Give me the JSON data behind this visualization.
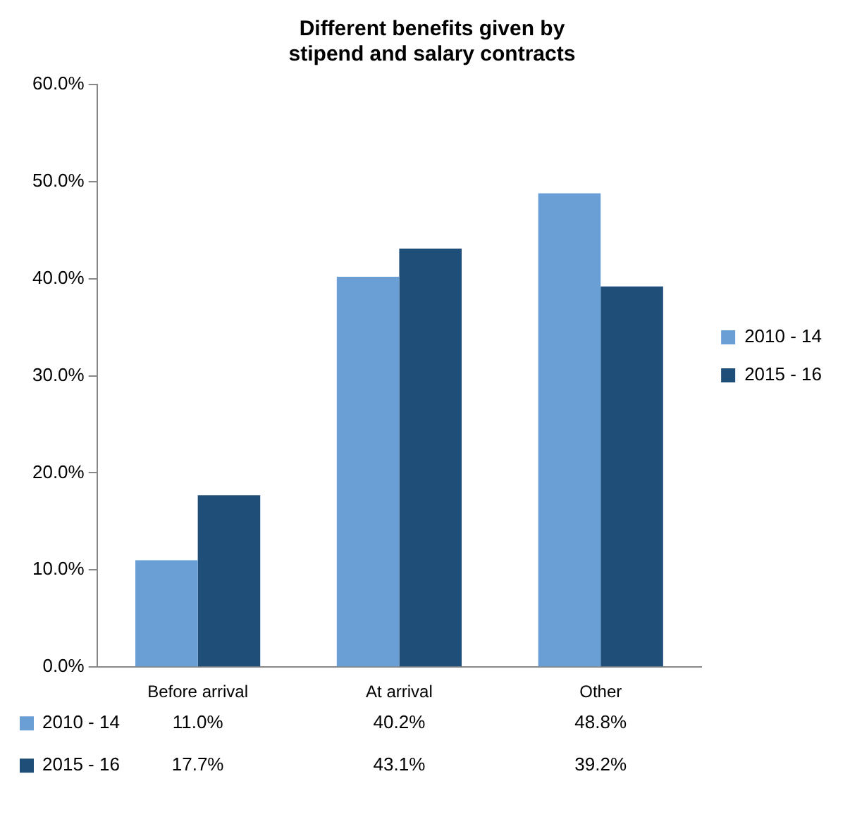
{
  "chart_data": {
    "type": "bar",
    "title": "Different benefits given by stipend and salary contracts",
    "categories": [
      "Before arrival",
      "At arrival",
      "Other"
    ],
    "series": [
      {
        "name": "2010 - 14",
        "color": "#6a9fd6",
        "values": [
          11.0,
          40.2,
          48.8
        ]
      },
      {
        "name": "2015 - 16",
        "color": "#1f4e79",
        "values": [
          17.7,
          43.1,
          39.2
        ]
      }
    ],
    "ylim": [
      0,
      60
    ],
    "yticks": [
      {
        "value": 0,
        "label": "0.0%"
      },
      {
        "value": 10,
        "label": "10.0%"
      },
      {
        "value": 20,
        "label": "20.0%"
      },
      {
        "value": 30,
        "label": "30.0%"
      },
      {
        "value": 40,
        "label": "40.0%"
      },
      {
        "value": 50,
        "label": "50.0%"
      },
      {
        "value": 60,
        "label": "60.0%"
      }
    ],
    "value_labels": [
      [
        "11.0%",
        "40.2%",
        "48.8%"
      ],
      [
        "17.7%",
        "43.1%",
        "39.2%"
      ]
    ],
    "grid": false,
    "legend": "right"
  }
}
